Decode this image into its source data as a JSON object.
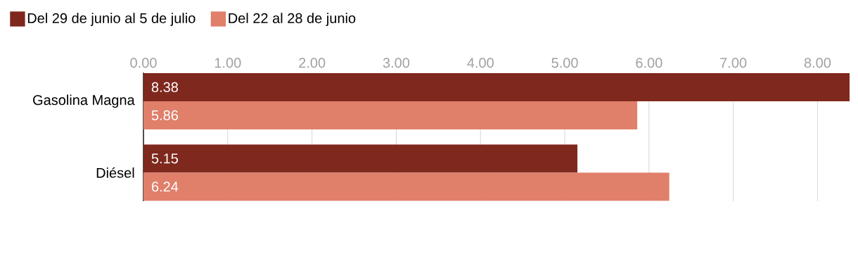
{
  "chart_data": {
    "type": "bar",
    "orientation": "horizontal",
    "categories": [
      "Gasolina Magna",
      "Diésel"
    ],
    "series": [
      {
        "name": "Del 29 de junio al 5 de julio",
        "color": "#7f281d",
        "values": [
          8.38,
          5.15
        ]
      },
      {
        "name": "Del 22 al 28 de junio",
        "color": "#e07f6a",
        "values": [
          5.86,
          6.24
        ]
      }
    ],
    "xlim": [
      0,
      8.38
    ],
    "xticks": [
      {
        "value": 0,
        "label": "0.00"
      },
      {
        "value": 1,
        "label": "1.00"
      },
      {
        "value": 2,
        "label": "2.00"
      },
      {
        "value": 3,
        "label": "3.00"
      },
      {
        "value": 4,
        "label": "4.00"
      },
      {
        "value": 5,
        "label": "5.00"
      },
      {
        "value": 6,
        "label": "6.00"
      },
      {
        "value": 7,
        "label": "7.00"
      },
      {
        "value": 8,
        "label": "8.00"
      }
    ],
    "grid": "x",
    "legend": "top left",
    "data_labels": true
  }
}
